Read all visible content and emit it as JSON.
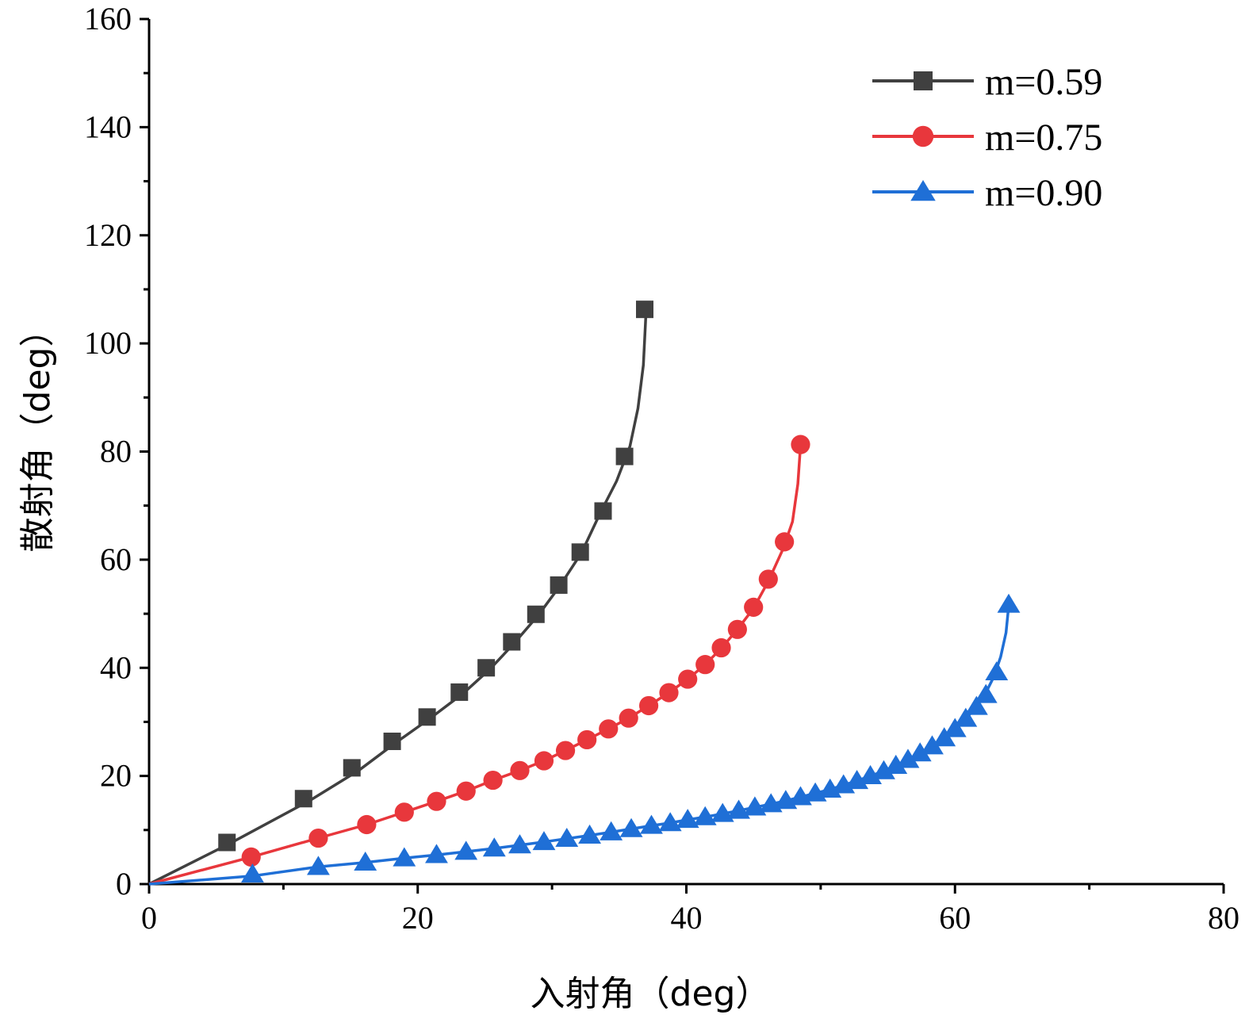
{
  "chart_data": {
    "type": "line",
    "title": "",
    "xlabel": "入射角（deg）",
    "ylabel": "散射角（deg）",
    "xlim": [
      0,
      80
    ],
    "ylim": [
      0,
      160
    ],
    "xticks": [
      0,
      20,
      40,
      60,
      80
    ],
    "yticks": [
      0,
      20,
      40,
      60,
      80,
      100,
      120,
      140,
      160
    ],
    "grid": false,
    "legend_position": "top-right",
    "series": [
      {
        "name": "m=0.59",
        "color": "#404040",
        "marker": "square",
        "curve_x": [
          0,
          6,
          12,
          15.6,
          18.4,
          21,
          23.4,
          25.4,
          27.2,
          29,
          30.6,
          32.2,
          33.6,
          34.8,
          35.8,
          36.4,
          36.8,
          37.0
        ],
        "curve_y": [
          0,
          7.5,
          15.5,
          21,
          26.2,
          30.8,
          35.3,
          39.8,
          44.6,
          49.8,
          55.2,
          61.3,
          68.7,
          74.5,
          81,
          88,
          96,
          106
        ],
        "marker_x": [
          5.8,
          11.5,
          15.1,
          18.1,
          20.7,
          23.1,
          25.1,
          27.0,
          28.8,
          30.5,
          32.1,
          33.8,
          35.4,
          36.9
        ],
        "marker_y": [
          7.7,
          15.8,
          21.5,
          26.4,
          30.9,
          35.5,
          40.0,
          44.8,
          49.9,
          55.3,
          61.4,
          69.0,
          79.1,
          106.3
        ]
      },
      {
        "name": "m=0.75",
        "color": "#e8373c",
        "marker": "circle",
        "curve_x": [
          0,
          7.6,
          12.6,
          16.2,
          19,
          21.4,
          23.6,
          25.6,
          27.6,
          29.4,
          31.0,
          32.6,
          34.2,
          35.7,
          37.2,
          38.7,
          40.1,
          41.4,
          42.6,
          43.8,
          45.0,
          46.1,
          47.2,
          47.9,
          48.3,
          48.5
        ],
        "curve_y": [
          0,
          5,
          8.5,
          11,
          13.3,
          15.3,
          17.2,
          19.2,
          21.0,
          22.8,
          24.7,
          26.7,
          28.7,
          30.7,
          33.0,
          35.4,
          37.9,
          40.6,
          43.6,
          47.1,
          51.0,
          56.0,
          62.0,
          67.0,
          74.0,
          81.2
        ],
        "marker_x": [
          7.6,
          12.6,
          16.2,
          19.0,
          21.4,
          23.6,
          25.6,
          27.6,
          29.4,
          31.0,
          32.6,
          34.2,
          35.7,
          37.2,
          38.7,
          40.1,
          41.4,
          42.6,
          43.8,
          45.0,
          46.1,
          47.3,
          48.5
        ],
        "marker_y": [
          5.0,
          8.5,
          11.0,
          13.3,
          15.3,
          17.2,
          19.2,
          21.0,
          22.8,
          24.7,
          26.7,
          28.7,
          30.7,
          33.0,
          35.4,
          37.9,
          40.6,
          43.7,
          47.1,
          51.2,
          56.4,
          63.3,
          81.3
        ]
      },
      {
        "name": "m=0.90",
        "color": "#1f6fd6",
        "marker": "triangle",
        "curve_x": [
          0,
          7.7,
          12.6,
          16.1,
          19.0,
          21.4,
          23.6,
          25.7,
          27.6,
          29.4,
          31.1,
          32.8,
          34.4,
          35.9,
          37.4,
          38.8,
          40.1,
          41.4,
          42.7,
          43.9,
          45.1,
          46.3,
          47.4,
          48.5,
          49.6,
          50.7,
          51.7,
          52.7,
          53.7,
          54.7,
          55.6,
          56.5,
          57.4,
          58.3,
          59.2,
          60.0,
          60.8,
          61.6,
          62.3,
          62.9,
          63.4,
          63.8,
          64.0
        ],
        "curve_y": [
          0,
          1.5,
          3.2,
          4.0,
          4.8,
          5.4,
          6.0,
          6.6,
          7.2,
          7.8,
          8.4,
          9.0,
          9.6,
          10.2,
          10.8,
          11.3,
          11.9,
          12.4,
          13.0,
          13.6,
          14.2,
          14.8,
          15.4,
          16.1,
          16.8,
          17.5,
          18.3,
          19.1,
          20.0,
          20.9,
          21.9,
          23.0,
          24.2,
          25.5,
          27.0,
          28.7,
          30.6,
          32.8,
          35.4,
          38.4,
          42.0,
          46.5,
          51.5
        ],
        "marker_x": [
          7.7,
          12.6,
          16.1,
          19.0,
          21.4,
          23.6,
          25.7,
          27.6,
          29.4,
          31.1,
          32.8,
          34.4,
          35.9,
          37.4,
          38.8,
          40.1,
          41.4,
          42.7,
          43.9,
          45.1,
          46.3,
          47.4,
          48.5,
          49.6,
          50.7,
          51.7,
          52.7,
          53.7,
          54.7,
          55.6,
          56.5,
          57.4,
          58.3,
          59.2,
          60.0,
          60.8,
          61.6,
          62.3,
          63.1,
          64.0
        ],
        "marker_y": [
          1.8,
          3.2,
          4.0,
          4.8,
          5.4,
          6.0,
          6.6,
          7.2,
          7.8,
          8.4,
          9.0,
          9.6,
          10.2,
          10.8,
          11.3,
          11.9,
          12.4,
          13.0,
          13.6,
          14.2,
          14.8,
          15.4,
          16.1,
          16.8,
          17.5,
          18.3,
          19.1,
          20.0,
          20.9,
          21.9,
          23.0,
          24.2,
          25.5,
          27.0,
          28.7,
          30.6,
          32.8,
          35.0,
          39.2,
          51.7
        ]
      }
    ]
  }
}
